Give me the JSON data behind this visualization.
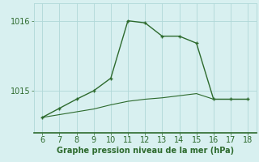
{
  "x_hours": [
    6,
    7,
    8,
    9,
    10,
    11,
    12,
    13,
    14,
    15,
    16,
    17,
    18
  ],
  "line1_y": [
    1014.62,
    1014.75,
    1014.88,
    1015.0,
    1015.18,
    1016.0,
    1015.97,
    1015.78,
    1015.78,
    1015.68,
    1014.88,
    1014.88,
    1014.88
  ],
  "line2_y": [
    1014.62,
    1014.66,
    1014.7,
    1014.74,
    1014.8,
    1014.85,
    1014.88,
    1014.9,
    1014.93,
    1014.96,
    1014.88,
    1014.88,
    1014.88
  ],
  "ylim_min": 1014.4,
  "ylim_max": 1016.25,
  "yticks": [
    1015,
    1016
  ],
  "xticks": [
    6,
    7,
    8,
    9,
    10,
    11,
    12,
    13,
    14,
    15,
    16,
    17,
    18
  ],
  "line_color": "#2d6a2d",
  "bg_color": "#d8f0f0",
  "grid_color": "#b0d8d8",
  "border_color": "#2d6a2d",
  "xlabel": "Graphe pression niveau de la mer (hPa)",
  "xlabel_color": "#2d6a2d",
  "tick_fontsize": 7.0,
  "xlabel_fontsize": 7.0
}
